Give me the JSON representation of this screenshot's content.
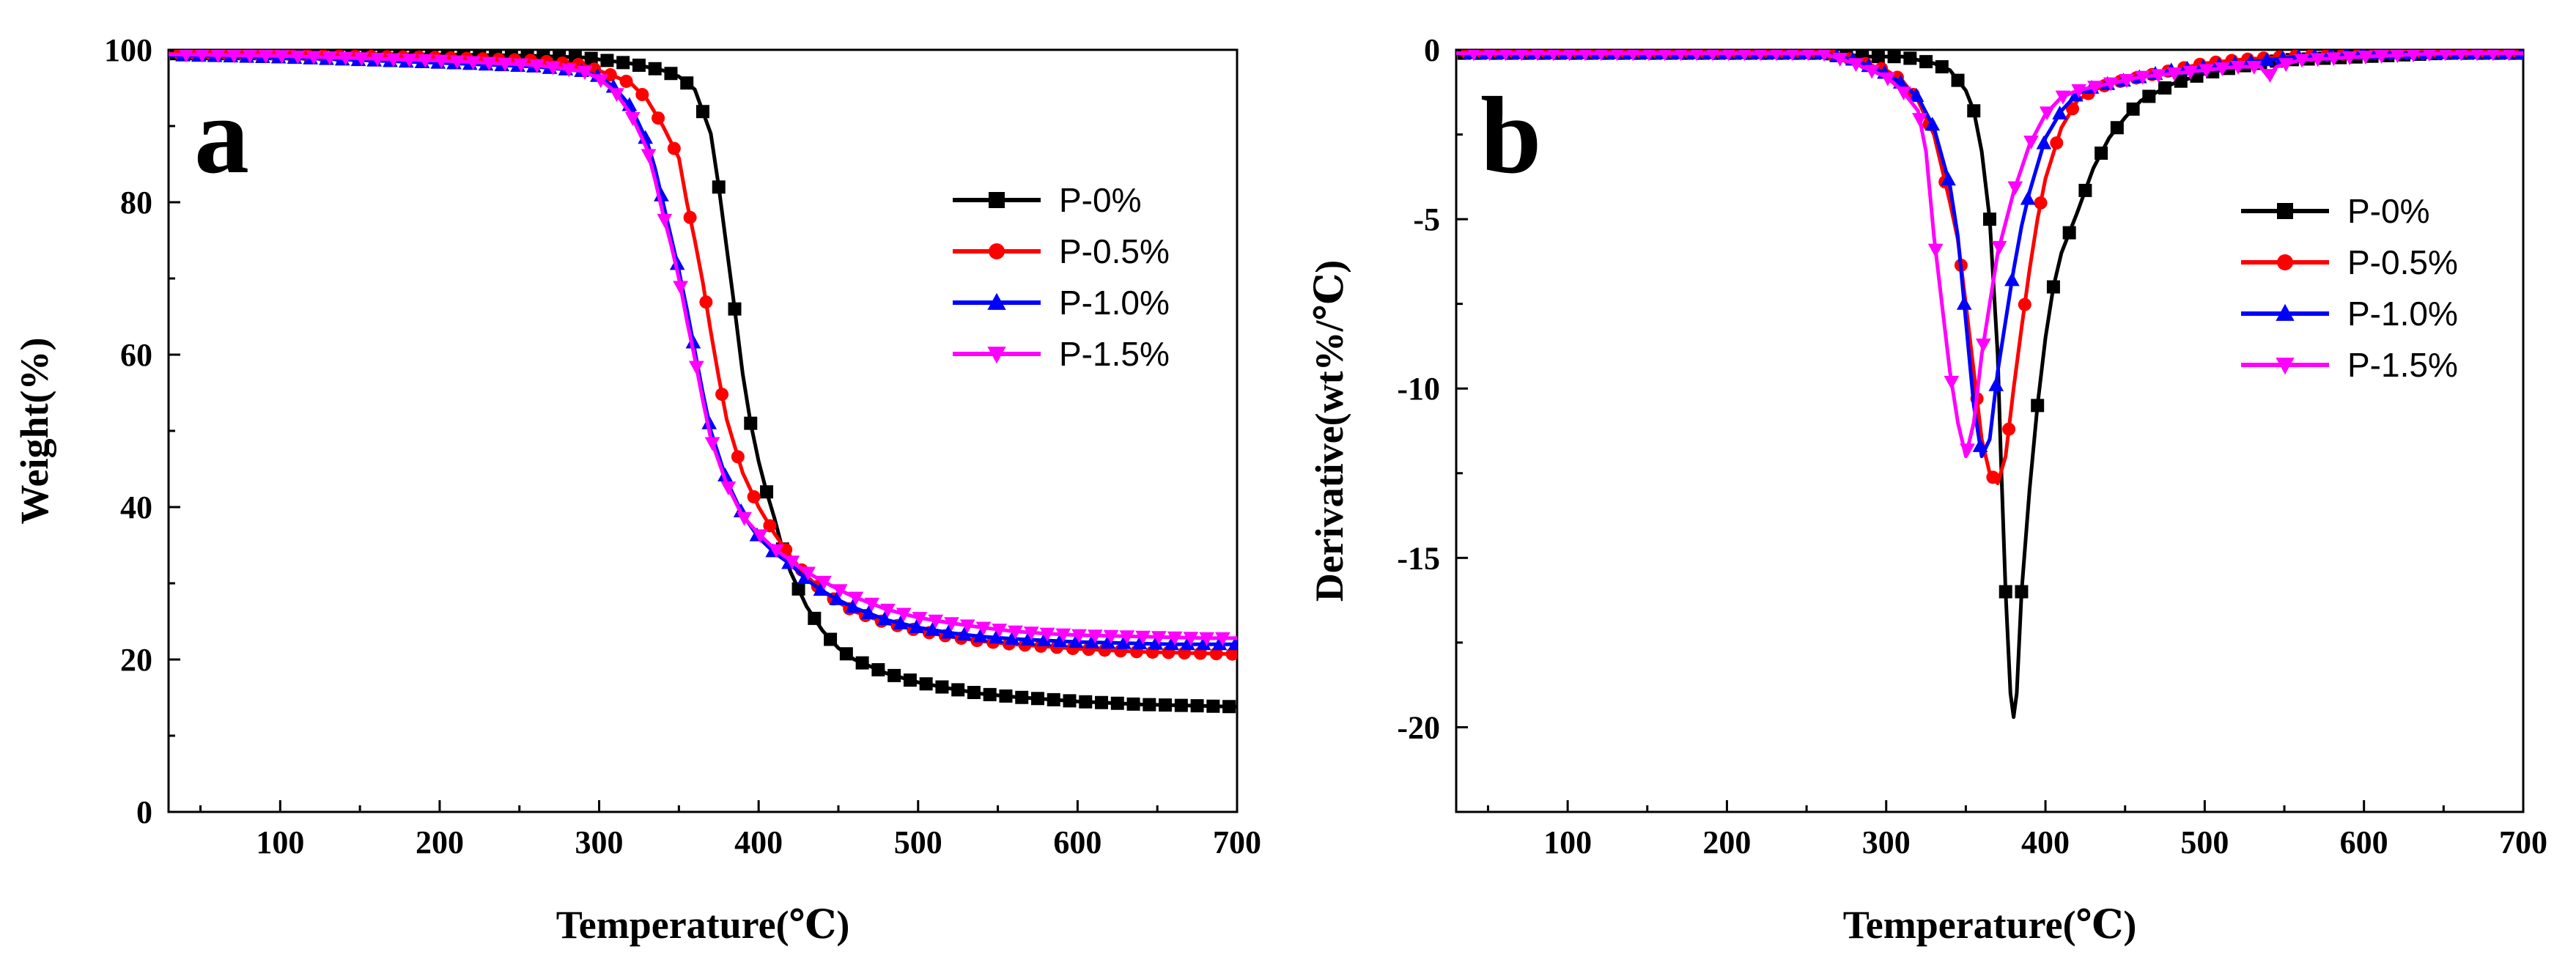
{
  "chart_data": [
    {
      "type": "line",
      "panel_label": "a",
      "xlabel": "Temperature(℃)",
      "ylabel": "Weight(%)",
      "xlim": [
        30,
        700
      ],
      "ylim": [
        0,
        100
      ],
      "xticks": [
        100,
        200,
        300,
        400,
        500,
        600,
        700
      ],
      "yticks": [
        0,
        20,
        40,
        60,
        80,
        100
      ],
      "legend_position": "upper-right",
      "series": [
        {
          "name": "P-0%",
          "color": "#000000",
          "marker": "square",
          "x": [
            30,
            100,
            200,
            260,
            290,
            320,
            340,
            350,
            360,
            370,
            375,
            380,
            385,
            390,
            395,
            400,
            405,
            410,
            415,
            420,
            430,
            440,
            450,
            460,
            480,
            500,
            520,
            540,
            560,
            580,
            600,
            620,
            640,
            660,
            680,
            700
          ],
          "y": [
            99.5,
            99.5,
            99.4,
            99.2,
            99.0,
            98.2,
            97.3,
            96.5,
            94.8,
            89.0,
            82.0,
            74.0,
            66.0,
            57.5,
            51.0,
            46.0,
            42.0,
            38.5,
            34.5,
            31.5,
            27.0,
            23.8,
            21.5,
            20.0,
            18.2,
            17.0,
            16.2,
            15.5,
            15.1,
            14.8,
            14.5,
            14.3,
            14.1,
            14.0,
            13.9,
            13.8
          ]
        },
        {
          "name": "P-0.5%",
          "color": "#ff0000",
          "marker": "circle",
          "x": [
            30,
            100,
            200,
            260,
            290,
            310,
            320,
            330,
            340,
            350,
            355,
            360,
            365,
            370,
            375,
            380,
            390,
            400,
            410,
            420,
            430,
            440,
            450,
            460,
            480,
            500,
            520,
            540,
            560,
            580,
            600,
            620,
            640,
            660,
            680,
            700
          ],
          "y": [
            99.5,
            99.3,
            99.0,
            98.6,
            98.0,
            96.5,
            95.6,
            93.5,
            90.0,
            85.8,
            80.0,
            75.0,
            69.5,
            63.0,
            57.0,
            51.5,
            44.5,
            40.0,
            36.5,
            33.5,
            31.0,
            29.0,
            27.5,
            26.3,
            24.8,
            23.8,
            23.0,
            22.4,
            22.0,
            21.7,
            21.4,
            21.2,
            21.0,
            20.9,
            20.8,
            20.7
          ]
        },
        {
          "name": "P-1.0%",
          "color": "#0000ff",
          "marker": "triangle-up",
          "x": [
            30,
            100,
            200,
            260,
            290,
            300,
            310,
            320,
            330,
            335,
            340,
            345,
            350,
            355,
            360,
            365,
            370,
            380,
            390,
            400,
            410,
            420,
            430,
            440,
            450,
            460,
            480,
            500,
            520,
            540,
            560,
            580,
            600,
            620,
            640,
            660,
            680,
            700
          ],
          "y": [
            99.3,
            99.0,
            98.3,
            97.8,
            97.2,
            96.5,
            95.0,
            92.5,
            88.0,
            84.5,
            80.0,
            75.5,
            71.0,
            66.0,
            60.5,
            55.0,
            50.0,
            43.5,
            39.0,
            36.0,
            34.0,
            32.5,
            30.5,
            29.0,
            27.8,
            26.8,
            25.2,
            24.2,
            23.5,
            23.0,
            22.7,
            22.5,
            22.3,
            22.2,
            22.1,
            22.0,
            22.0,
            22.0
          ]
        },
        {
          "name": "P-1.5%",
          "color": "#ff00ff",
          "marker": "triangle-down",
          "x": [
            30,
            100,
            200,
            260,
            290,
            300,
            310,
            320,
            330,
            335,
            340,
            345,
            350,
            355,
            360,
            365,
            370,
            380,
            390,
            400,
            410,
            420,
            430,
            440,
            450,
            460,
            480,
            500,
            520,
            540,
            560,
            580,
            600,
            620,
            640,
            660,
            680,
            700
          ],
          "y": [
            99.4,
            99.2,
            98.6,
            98.0,
            97.2,
            96.2,
            94.5,
            91.5,
            87.0,
            83.0,
            78.5,
            74.5,
            70.0,
            64.5,
            59.5,
            54.0,
            49.0,
            43.0,
            38.8,
            36.5,
            34.5,
            33.0,
            31.5,
            30.3,
            29.2,
            28.2,
            26.6,
            25.5,
            24.8,
            24.2,
            23.7,
            23.4,
            23.2,
            23.1,
            23.0,
            22.9,
            22.8,
            22.8
          ]
        }
      ]
    },
    {
      "type": "line",
      "panel_label": "b",
      "xlabel": "Temperature(℃)",
      "ylabel": "Derivative(wt%/℃)",
      "xlim": [
        30,
        700
      ],
      "ylim": [
        -22.5,
        0
      ],
      "xticks": [
        100,
        200,
        300,
        400,
        500,
        600,
        700
      ],
      "yticks": [
        0,
        -5,
        -10,
        -15,
        -20
      ],
      "legend_position": "upper-right",
      "series": [
        {
          "name": "P-0%",
          "color": "#000000",
          "marker": "square",
          "x": [
            30,
            100,
            200,
            260,
            290,
            310,
            330,
            340,
            350,
            355,
            360,
            365,
            370,
            372,
            375,
            378,
            380,
            382,
            385,
            390,
            395,
            400,
            405,
            410,
            420,
            430,
            440,
            450,
            460,
            480,
            500,
            520,
            550,
            600,
            650,
            700
          ],
          "y": [
            -0.1,
            -0.1,
            -0.1,
            -0.1,
            -0.2,
            -0.2,
            -0.4,
            -0.6,
            -1.2,
            -1.8,
            -3.0,
            -5.0,
            -9.0,
            -12.0,
            -16.0,
            -19.0,
            -19.7,
            -19.0,
            -16.0,
            -13.0,
            -10.5,
            -8.5,
            -7.0,
            -6.0,
            -4.8,
            -3.5,
            -2.6,
            -2.0,
            -1.5,
            -1.0,
            -0.7,
            -0.5,
            -0.3,
            -0.2,
            -0.1,
            -0.1
          ]
        },
        {
          "name": "P-0.5%",
          "color": "#ff0000",
          "marker": "circle",
          "x": [
            30,
            100,
            200,
            220,
            260,
            280,
            300,
            310,
            320,
            330,
            340,
            345,
            350,
            355,
            360,
            365,
            370,
            375,
            380,
            385,
            390,
            395,
            400,
            410,
            420,
            430,
            440,
            450,
            460,
            480,
            500,
            520,
            550,
            600,
            650,
            700
          ],
          "y": [
            -0.1,
            -0.1,
            -0.1,
            -0.1,
            -0.1,
            -0.3,
            -0.6,
            -0.9,
            -1.5,
            -2.5,
            -4.5,
            -5.6,
            -7.5,
            -9.5,
            -11.5,
            -12.5,
            -12.8,
            -12.0,
            -10.0,
            -8.2,
            -6.5,
            -5.0,
            -3.8,
            -2.3,
            -1.5,
            -1.2,
            -1.0,
            -0.9,
            -0.8,
            -0.6,
            -0.4,
            -0.3,
            -0.2,
            -0.1,
            -0.1,
            -0.1
          ]
        },
        {
          "name": "P-1.0%",
          "color": "#0000ff",
          "marker": "triangle-up",
          "x": [
            30,
            100,
            200,
            260,
            280,
            300,
            310,
            320,
            330,
            340,
            345,
            350,
            355,
            360,
            365,
            370,
            375,
            380,
            385,
            390,
            400,
            410,
            420,
            430,
            440,
            450,
            460,
            480,
            500,
            520,
            540,
            560,
            600,
            650,
            700
          ],
          "y": [
            -0.1,
            -0.1,
            -0.1,
            -0.1,
            -0.3,
            -0.7,
            -1.0,
            -1.4,
            -2.3,
            -4.0,
            -5.5,
            -8.0,
            -10.5,
            -12.0,
            -11.5,
            -9.5,
            -8.0,
            -6.5,
            -5.2,
            -4.2,
            -2.6,
            -1.8,
            -1.3,
            -1.1,
            -1.0,
            -0.9,
            -0.8,
            -0.6,
            -0.5,
            -0.4,
            -0.3,
            -0.2,
            -0.1,
            -0.1,
            -0.1
          ]
        },
        {
          "name": "P-1.5%",
          "color": "#ff00ff",
          "marker": "triangle-down",
          "x": [
            30,
            100,
            200,
            260,
            280,
            300,
            310,
            320,
            325,
            330,
            335,
            340,
            345,
            350,
            355,
            360,
            365,
            370,
            380,
            390,
            400,
            410,
            420,
            430,
            440,
            450,
            460,
            480,
            500,
            520,
            535,
            540,
            545,
            560,
            600,
            650,
            700
          ],
          "y": [
            -0.1,
            -0.1,
            -0.1,
            -0.1,
            -0.4,
            -0.8,
            -1.2,
            -1.8,
            -3.0,
            -5.5,
            -7.5,
            -9.5,
            -11.0,
            -12.0,
            -11.0,
            -9.0,
            -7.5,
            -6.0,
            -4.2,
            -2.8,
            -1.9,
            -1.4,
            -1.2,
            -1.1,
            -1.0,
            -0.9,
            -0.8,
            -0.7,
            -0.6,
            -0.5,
            -0.5,
            -0.8,
            -0.5,
            -0.3,
            -0.2,
            -0.1,
            -0.1
          ]
        }
      ]
    }
  ]
}
